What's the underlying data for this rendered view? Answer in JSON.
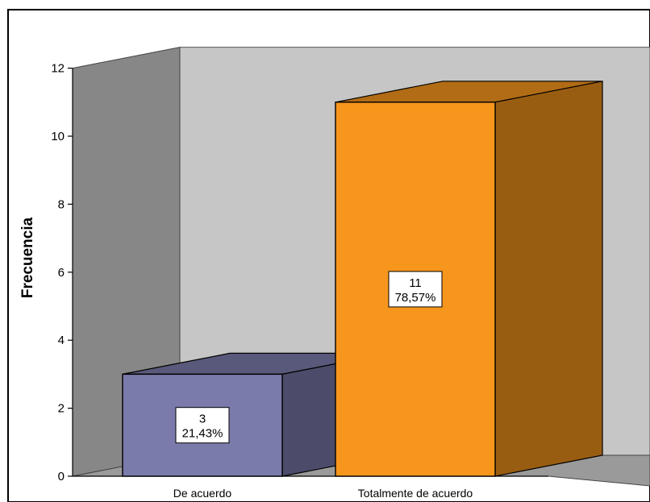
{
  "chart_data": {
    "type": "bar",
    "title": "",
    "xlabel": "",
    "ylabel": "Frecuencia",
    "ylim": [
      0,
      12
    ],
    "yticks": [
      0,
      2,
      4,
      6,
      8,
      10,
      12
    ],
    "grid": false,
    "legend": "none",
    "categories": [
      "De acuerdo",
      "Totalmente de acuerdo"
    ],
    "values": [
      3,
      11
    ],
    "value_labels": [
      "3",
      "11"
    ],
    "percent_labels": [
      "21,43%",
      "78,57%"
    ],
    "colors": {
      "bars": [
        "#7b7bab",
        "#f7961d"
      ],
      "back_wall": "#c6c6c6",
      "side_wall": "#878787",
      "floor": "#9a9a9a",
      "frame": "#000000"
    }
  }
}
